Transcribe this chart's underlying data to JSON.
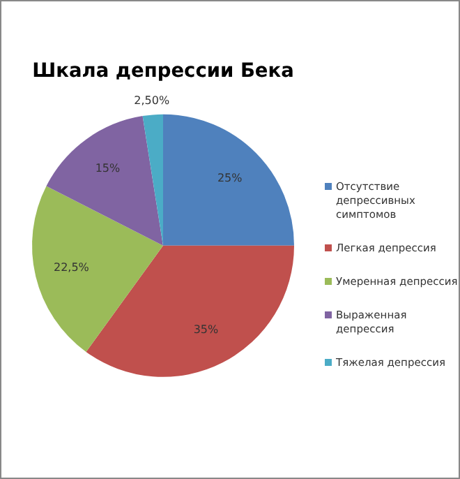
{
  "chart_data": {
    "type": "pie",
    "title": "Шкала депрессии Бека",
    "categories": [
      "Отсутствие депрессивных симптомов",
      "Легкая депрессия",
      "Умеренная депрессия",
      "Выраженная депрессия",
      "Тяжелая депрессия"
    ],
    "values": [
      25,
      35,
      22.5,
      15,
      2.5
    ],
    "value_labels": [
      "25%",
      "35%",
      "22,5%",
      "15%",
      "2,50%"
    ],
    "colors": [
      "#4f81bd",
      "#c0504d",
      "#9bbb59",
      "#8064a2",
      "#4bacc6"
    ],
    "legend": "right"
  }
}
